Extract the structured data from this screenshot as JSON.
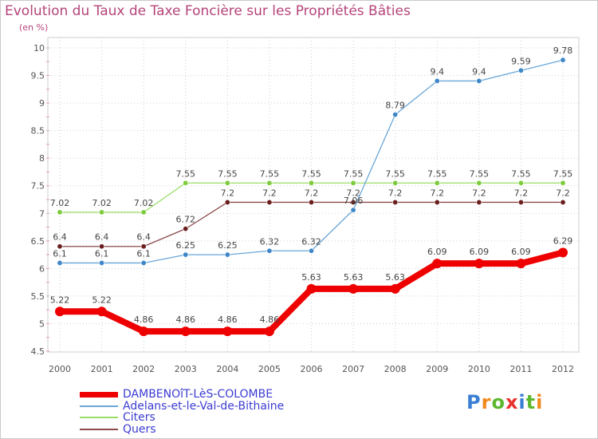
{
  "title": "Evolution du Taux de Taxe Foncière sur les Propriétés Bâties",
  "unit_label": "(en %)",
  "logo_text": "Proxiti",
  "chart_data": {
    "type": "line",
    "categories": [
      "2000",
      "2001",
      "2002",
      "2003",
      "2004",
      "2005",
      "2006",
      "2007",
      "2008",
      "2009",
      "2010",
      "2011",
      "2012"
    ],
    "ylim": [
      4.5,
      10
    ],
    "yticks": [
      "4.5",
      "5",
      "5.5",
      "6",
      "6.5",
      "7",
      "7.5",
      "8",
      "8.5",
      "9",
      "9.5",
      "10"
    ],
    "grid": true,
    "legend_position": "bottom-left",
    "series": [
      {
        "name": "DAMBENOîT-LèS-COLOMBE",
        "color": "#ee0000",
        "marker_color": "#ee0000",
        "values": [
          5.22,
          5.22,
          4.86,
          4.86,
          4.86,
          4.86,
          5.63,
          5.63,
          5.63,
          6.09,
          6.09,
          6.09,
          6.29
        ],
        "labels": [
          "5.22",
          "5.22",
          "4.86",
          "4.86",
          "4.86",
          "4.86",
          "5.63",
          "5.63",
          "5.63",
          "6.09",
          "6.09",
          "6.09",
          "6.29"
        ]
      },
      {
        "name": "Adelans-et-le-Val-de-Bithaine",
        "color": "#6aa6d8",
        "marker_color": "#3d86c8",
        "values": [
          6.1,
          6.1,
          6.1,
          6.25,
          6.25,
          6.32,
          6.32,
          7.06,
          8.79,
          9.4,
          9.4,
          9.59,
          9.78
        ],
        "labels": [
          "6.1",
          "6.1",
          "6.1",
          "6.25",
          "6.25",
          "6.32",
          "6.32",
          "7.06",
          "8.79",
          "9.4",
          "9.4",
          "9.59",
          "9.78"
        ]
      },
      {
        "name": "Citers",
        "color": "#99dd66",
        "marker_color": "#7ccc3c",
        "values": [
          7.02,
          7.02,
          7.02,
          7.55,
          7.55,
          7.55,
          7.55,
          7.55,
          7.55,
          7.55,
          7.55,
          7.55,
          7.55
        ],
        "labels": [
          "7.02",
          "7.02",
          "7.02",
          "7.55",
          "7.55",
          "7.55",
          "7.55",
          "7.55",
          "7.55",
          "7.55",
          "7.55",
          "7.55",
          "7.55"
        ]
      },
      {
        "name": "Quers",
        "color": "#8b4a4a",
        "marker_color": "#6b1e1e",
        "values": [
          6.4,
          6.4,
          6.4,
          6.72,
          7.2,
          7.2,
          7.2,
          7.2,
          7.2,
          7.2,
          7.2,
          7.2,
          7.2
        ],
        "labels": [
          "6.4",
          "6.4",
          "6.4",
          "6.72",
          "7.2",
          "7.2",
          "7.2",
          "7.2",
          "7.2",
          "7.2",
          "7.2",
          "7.2",
          "7.2"
        ]
      }
    ]
  }
}
